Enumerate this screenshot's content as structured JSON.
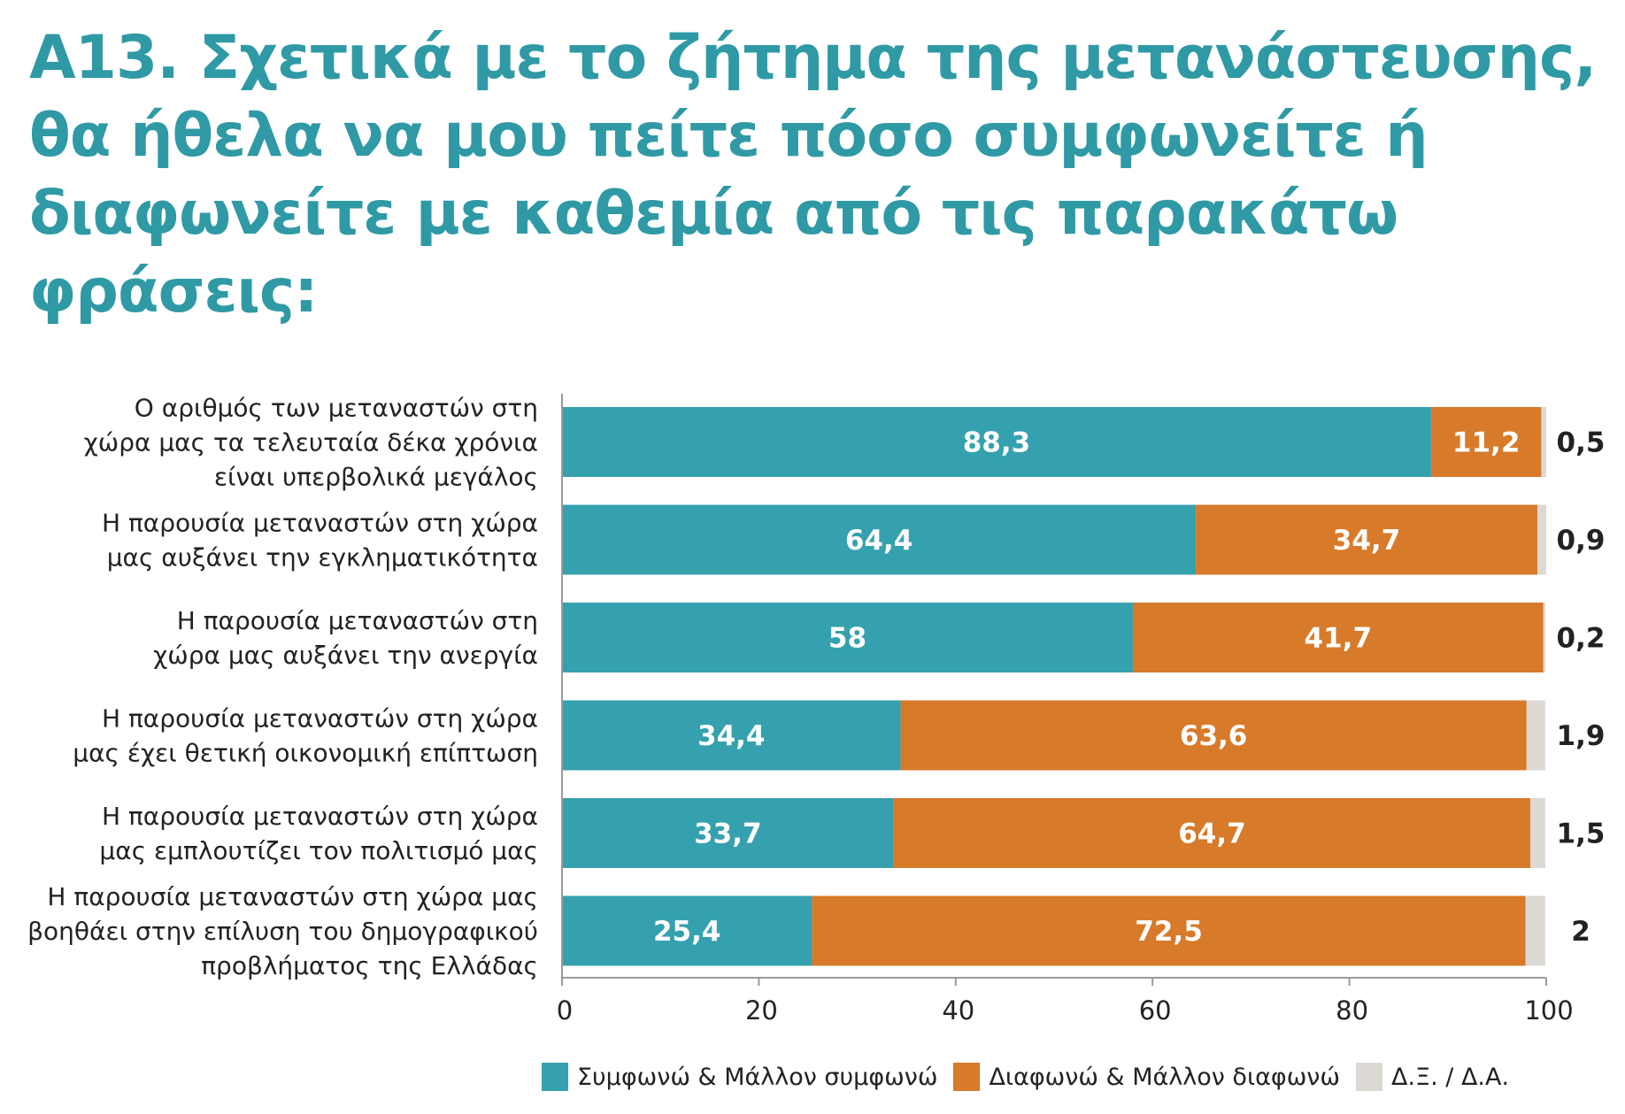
{
  "title_lines": [
    "Α13. Σχετικά με το ζήτημα της μετανάστευσης,",
    "θα ήθελα να μου πείτε πόσο συμφωνείτε ή",
    "διαφωνείτε με καθεμία από τις παρακάτω",
    "φράσεις:"
  ],
  "colors": {
    "title": "#2f9aa5",
    "agree": "#36a1ae",
    "disagree": "#d77a2a",
    "dk": "#dcd9d5",
    "axis": "#9a9a9a",
    "text": "#222222"
  },
  "legend": [
    {
      "label": "Συμφωνώ & Μάλλον συμφωνώ",
      "color": "#36a1ae"
    },
    {
      "label": "Διαφωνώ & Μάλλον διαφωνώ",
      "color": "#d77a2a"
    },
    {
      "label": "Δ.Ξ. / Δ.Α.",
      "color": "#dcd9d5"
    }
  ],
  "chart_data": {
    "type": "bar",
    "orientation": "horizontal",
    "stacked": true,
    "xlim": [
      0,
      100
    ],
    "x_ticks": [
      0,
      20,
      40,
      60,
      80,
      100
    ],
    "categories": [
      [
        "Ο αριθμός των μεταναστών στη",
        "χώρα μας τα τελευταία δέκα χρόνια",
        "είναι υπερβολικά μεγάλος"
      ],
      [
        "Η παρουσία μεταναστών στη χώρα",
        "μας αυξάνει την εγκληματικότητα"
      ],
      [
        "Η παρουσία μεταναστών στη",
        "χώρα μας αυξάνει την ανεργία"
      ],
      [
        "Η παρουσία μεταναστών στη χώρα",
        "μας έχει θετική οικονομική επίπτωση"
      ],
      [
        "Η παρουσία μεταναστών στη χώρα",
        "μας εμπλουτίζει τον πολιτισμό μας"
      ],
      [
        "Η παρουσία μεταναστών στη χώρα μας",
        "βοηθάει στην επίλυση του δημογραφικού",
        "προβλήματος της Ελλάδας"
      ]
    ],
    "series": [
      {
        "name": "Συμφωνώ & Μάλλον συμφωνώ",
        "values": [
          88.3,
          64.4,
          58,
          34.4,
          33.7,
          25.4
        ],
        "labels": [
          "88,3",
          "64,4",
          "58",
          "34,4",
          "33,7",
          "25,4"
        ]
      },
      {
        "name": "Διαφωνώ & Μάλλον διαφωνώ",
        "values": [
          11.2,
          34.7,
          41.7,
          63.6,
          64.7,
          72.5
        ],
        "labels": [
          "11,2",
          "34,7",
          "41,7",
          "63,6",
          "64,7",
          "72,5"
        ]
      },
      {
        "name": "Δ.Ξ. / Δ.Α.",
        "values": [
          0.5,
          0.9,
          0.2,
          1.9,
          1.5,
          2
        ],
        "labels": [
          "0,5",
          "0,9",
          "0,2",
          "1,9",
          "1,5",
          "2"
        ]
      }
    ],
    "legend_position": "bottom",
    "grid": false
  }
}
